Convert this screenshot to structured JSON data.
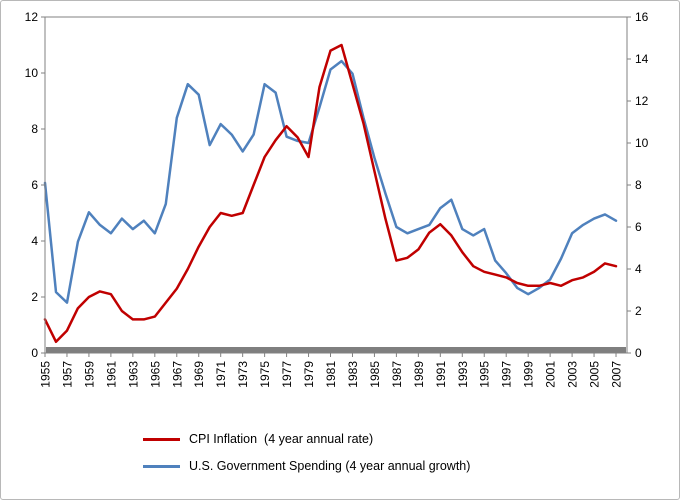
{
  "chart": {
    "legend": [
      {
        "label": "CPI Inflation  (4 year annual rate)",
        "color": "#C00000"
      },
      {
        "label": "U.S. Government Spending (4 year annual growth)",
        "color": "#4F81BD"
      }
    ]
  },
  "chart_data": {
    "type": "line",
    "title": "",
    "xlabel": "",
    "ylabel_left": "",
    "ylabel_right": "",
    "grid": false,
    "legend_position": "bottom",
    "x_range": [
      1955,
      2008
    ],
    "left_ylim": [
      0,
      12
    ],
    "right_ylim": [
      0,
      16
    ],
    "left_ticks": [
      0,
      2,
      4,
      6,
      8,
      10,
      12
    ],
    "right_ticks": [
      0,
      2,
      4,
      6,
      8,
      10,
      12,
      14,
      16
    ],
    "x_ticks": [
      1955,
      1957,
      1959,
      1961,
      1963,
      1965,
      1967,
      1969,
      1971,
      1973,
      1975,
      1977,
      1979,
      1981,
      1983,
      1985,
      1987,
      1989,
      1991,
      1993,
      1995,
      1997,
      1999,
      2001,
      2003,
      2005,
      2007
    ],
    "x": [
      1955,
      1956,
      1957,
      1958,
      1959,
      1960,
      1961,
      1962,
      1963,
      1964,
      1965,
      1966,
      1967,
      1968,
      1969,
      1970,
      1971,
      1972,
      1973,
      1974,
      1975,
      1976,
      1977,
      1978,
      1979,
      1980,
      1981,
      1982,
      1983,
      1984,
      1985,
      1986,
      1987,
      1988,
      1989,
      1990,
      1991,
      1992,
      1993,
      1994,
      1995,
      1996,
      1997,
      1998,
      1999,
      2000,
      2001,
      2002,
      2003,
      2004,
      2005,
      2006,
      2007
    ],
    "colors": {
      "cpi": "#C00000",
      "spending": "#4F81BD",
      "baseline_bar": "#7F7F7F",
      "axis": "#808080"
    },
    "series": [
      {
        "name": "U.S. Government Spending (4 year annual growth)",
        "axis": "right",
        "color": "#4F81BD",
        "values": [
          8.1,
          2.9,
          2.4,
          5.3,
          6.7,
          6.1,
          5.7,
          6.4,
          5.9,
          6.3,
          5.7,
          7.1,
          11.2,
          12.8,
          12.3,
          9.9,
          10.9,
          10.4,
          9.6,
          10.4,
          12.8,
          12.4,
          10.3,
          10.1,
          10.0,
          11.7,
          13.5,
          13.9,
          13.3,
          11.2,
          9.3,
          7.6,
          6.0,
          5.7,
          5.9,
          6.1,
          6.9,
          7.3,
          5.9,
          5.6,
          5.9,
          4.4,
          3.8,
          3.1,
          2.8,
          3.1,
          3.5,
          4.5,
          5.7,
          6.1,
          6.4,
          6.6,
          6.3
        ]
      },
      {
        "name": "CPI Inflation (4 year annual rate)",
        "axis": "left",
        "color": "#C00000",
        "values": [
          1.2,
          0.4,
          0.8,
          1.6,
          2.0,
          2.2,
          2.1,
          1.5,
          1.2,
          1.2,
          1.3,
          1.8,
          2.3,
          3.0,
          3.8,
          4.5,
          5.0,
          4.9,
          5.0,
          6.0,
          7.0,
          7.6,
          8.1,
          7.7,
          7.0,
          9.5,
          10.8,
          11.0,
          9.6,
          8.2,
          6.5,
          4.8,
          3.3,
          3.4,
          3.7,
          4.3,
          4.6,
          4.2,
          3.6,
          3.1,
          2.9,
          2.8,
          2.7,
          2.5,
          2.4,
          2.4,
          2.5,
          2.4,
          2.6,
          2.7,
          2.9,
          3.2,
          3.1
        ]
      }
    ]
  }
}
